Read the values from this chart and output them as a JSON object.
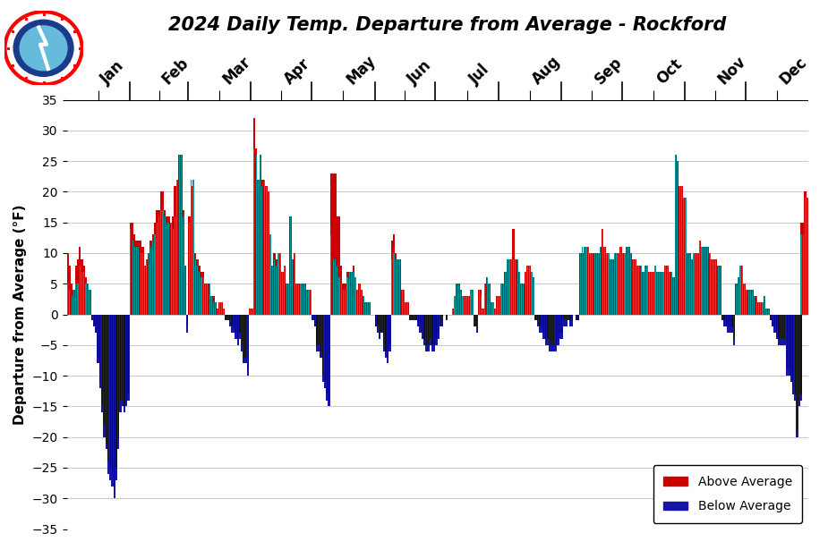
{
  "title": "2024 Daily Temp. Departure from Average - Rockford",
  "ylabel": "Departure from Average (°F)",
  "color_above": "#CC0000",
  "color_below": "#1515AA",
  "color_cyan": "#009999",
  "color_black": "#111111",
  "ylim": [
    -35,
    35
  ],
  "yticks": [
    -35,
    -30,
    -25,
    -20,
    -15,
    -10,
    -5,
    0,
    5,
    10,
    15,
    20,
    25,
    30,
    35
  ],
  "months": [
    "Jan",
    "Feb",
    "Mar",
    "Apr",
    "May",
    "Jun",
    "Jul",
    "Aug",
    "Sep",
    "Oct",
    "Nov",
    "Dec"
  ],
  "month_days": [
    31,
    29,
    31,
    30,
    31,
    30,
    31,
    31,
    30,
    31,
    30,
    31
  ],
  "departures_red": [
    10,
    8,
    5,
    4,
    8,
    9,
    11,
    9,
    8,
    6,
    5,
    4,
    0,
    0,
    0,
    0,
    0,
    0,
    0,
    0,
    0,
    0,
    0,
    0,
    0,
    0,
    0,
    0,
    0,
    0,
    0,
    15,
    15,
    13,
    12,
    12,
    12,
    11,
    8,
    9,
    10,
    12,
    13,
    15,
    17,
    17,
    20,
    20,
    17,
    16,
    16,
    15,
    16,
    21,
    22,
    26,
    26,
    17,
    8,
    0,
    16,
    21,
    21,
    10,
    9,
    8,
    7,
    7,
    5,
    5,
    5,
    3,
    3,
    2,
    1,
    2,
    2,
    1,
    0,
    0,
    0,
    0,
    0,
    0,
    0,
    0,
    0,
    0,
    0,
    0,
    1,
    1,
    32,
    27,
    22,
    26,
    22,
    22,
    21,
    20,
    13,
    8,
    10,
    9,
    10,
    10,
    7,
    8,
    5,
    5,
    16,
    9,
    10,
    5,
    5,
    5,
    5,
    5,
    4,
    4,
    4,
    0,
    0,
    0,
    0,
    0,
    0,
    0,
    0,
    0,
    23,
    23,
    23,
    16,
    16,
    8,
    5,
    5,
    7,
    7,
    7,
    8,
    6,
    4,
    5,
    4,
    3,
    2,
    2,
    2,
    0,
    0,
    0,
    0,
    0,
    0,
    0,
    0,
    0,
    0,
    12,
    13,
    10,
    9,
    9,
    4,
    4,
    2,
    2,
    0,
    0,
    0,
    0,
    0,
    0,
    0,
    0,
    0,
    0,
    0,
    0,
    0,
    0,
    0,
    0,
    0,
    0,
    0,
    0,
    0,
    1,
    3,
    5,
    5,
    4,
    3,
    3,
    3,
    3,
    4,
    4,
    0,
    0,
    4,
    4,
    1,
    5,
    6,
    5,
    2,
    2,
    1,
    3,
    3,
    5,
    5,
    7,
    9,
    9,
    9,
    14,
    9,
    9,
    7,
    5,
    5,
    7,
    8,
    8,
    7,
    6,
    0,
    0,
    0,
    0,
    0,
    0,
    0,
    0,
    0,
    0,
    0,
    0,
    0,
    0,
    0,
    0,
    0,
    0,
    0,
    0,
    0,
    0,
    10,
    10,
    11,
    11,
    11,
    10,
    10,
    10,
    10,
    10,
    11,
    14,
    11,
    10,
    10,
    9,
    9,
    10,
    10,
    10,
    11,
    10,
    10,
    11,
    11,
    10,
    9,
    9,
    8,
    8,
    8,
    7,
    8,
    8,
    7,
    7,
    7,
    8,
    7,
    7,
    7,
    7,
    8,
    8,
    7,
    7,
    6,
    26,
    25,
    21,
    21,
    19,
    19,
    10,
    10,
    9,
    10,
    10,
    10,
    12,
    11,
    11,
    11,
    11,
    10,
    9,
    9,
    9,
    8,
    8,
    0,
    0,
    0,
    0,
    0,
    0,
    0,
    5,
    6,
    8,
    8,
    5,
    4,
    4,
    4,
    4,
    3,
    3,
    2,
    2,
    2,
    3,
    1,
    1,
    0,
    0,
    0,
    0,
    0,
    0,
    0,
    0,
    0,
    0,
    0,
    0,
    0,
    0,
    0,
    15,
    15,
    20,
    19,
    10,
    9,
    10,
    9,
    10,
    10,
    13,
    12,
    13,
    12,
    9,
    5,
    5,
    4,
    4,
    4,
    10,
    13,
    13,
    12,
    12,
    12,
    10,
    10,
    9
  ],
  "departures_blue": [
    0,
    0,
    0,
    0,
    0,
    0,
    0,
    0,
    0,
    0,
    0,
    0,
    -1,
    -2,
    -3,
    -8,
    -12,
    -16,
    -20,
    -22,
    -26,
    -27,
    -28,
    -30,
    -27,
    -22,
    -16,
    -15,
    -16,
    -15,
    -14,
    0,
    0,
    0,
    0,
    0,
    0,
    0,
    0,
    0,
    0,
    0,
    0,
    0,
    0,
    0,
    0,
    0,
    0,
    0,
    0,
    0,
    0,
    0,
    0,
    0,
    0,
    0,
    0,
    -3,
    0,
    0,
    0,
    0,
    0,
    0,
    0,
    0,
    0,
    0,
    0,
    0,
    0,
    0,
    0,
    0,
    0,
    0,
    -1,
    -1,
    -2,
    -3,
    -3,
    -4,
    -5,
    -4,
    -6,
    -8,
    -8,
    -10,
    0,
    0,
    0,
    0,
    0,
    0,
    0,
    0,
    0,
    0,
    0,
    0,
    0,
    0,
    0,
    0,
    0,
    0,
    0,
    0,
    0,
    0,
    0,
    0,
    0,
    0,
    0,
    0,
    0,
    0,
    0,
    -1,
    -2,
    -6,
    -6,
    -7,
    -11,
    -12,
    -14,
    -15,
    0,
    0,
    0,
    0,
    0,
    0,
    0,
    0,
    0,
    0,
    0,
    0,
    0,
    0,
    0,
    0,
    0,
    0,
    0,
    0,
    0,
    0,
    -2,
    -3,
    -4,
    -3,
    -6,
    -7,
    -8,
    -6,
    0,
    0,
    0,
    0,
    0,
    0,
    0,
    0,
    0,
    -1,
    -1,
    -1,
    -1,
    -2,
    -3,
    -4,
    -5,
    -6,
    -6,
    -5,
    -6,
    -6,
    -5,
    -4,
    -2,
    -2,
    0,
    -1,
    0,
    0,
    0,
    0,
    0,
    0,
    0,
    0,
    0,
    0,
    0,
    0,
    0,
    -2,
    -3,
    0,
    0,
    0,
    0,
    0,
    0,
    0,
    0,
    0,
    0,
    0,
    0,
    0,
    0,
    0,
    0,
    0,
    0,
    0,
    0,
    0,
    0,
    0,
    0,
    0,
    0,
    0,
    0,
    -1,
    -2,
    -3,
    -3,
    -4,
    -5,
    -5,
    -6,
    -6,
    -6,
    -6,
    -5,
    -4,
    -4,
    -2,
    -2,
    -1,
    -2,
    -2,
    0,
    -1,
    -1,
    0,
    0,
    0,
    0,
    0,
    0,
    0,
    0,
    0,
    0,
    0,
    0,
    0,
    0,
    0,
    0,
    0,
    0,
    0,
    0,
    0,
    0,
    0,
    0,
    0,
    0,
    0,
    0,
    0,
    0,
    0,
    0,
    0,
    0,
    0,
    0,
    0,
    0,
    0,
    0,
    0,
    0,
    0,
    0,
    0,
    0,
    0,
    0,
    0,
    0,
    0,
    0,
    0,
    0,
    0,
    0,
    0,
    0,
    0,
    0,
    0,
    0,
    0,
    0,
    0,
    0,
    0,
    0,
    0,
    0,
    -1,
    -2,
    -2,
    -3,
    -3,
    -3,
    -5,
    0,
    0,
    0,
    0,
    0,
    0,
    0,
    0,
    0,
    0,
    0,
    0,
    0,
    0,
    0,
    0,
    0,
    -1,
    -2,
    -3,
    -4,
    -5,
    -5,
    -5,
    -5,
    -10,
    -10,
    -11,
    -13,
    -14,
    -20,
    -15,
    -14,
    0,
    0,
    0,
    0,
    0,
    0,
    0,
    0,
    0,
    0,
    0,
    0,
    0,
    0,
    0,
    0,
    0,
    0,
    0,
    0,
    0,
    0,
    0,
    0,
    0,
    0,
    0,
    0
  ],
  "departures_cyan": [
    5,
    4,
    3,
    4,
    5,
    5,
    8,
    7,
    7,
    5,
    5,
    4,
    0,
    0,
    0,
    0,
    0,
    0,
    0,
    0,
    0,
    0,
    0,
    0,
    0,
    0,
    0,
    0,
    0,
    0,
    0,
    14,
    12,
    11,
    11,
    11,
    10,
    10,
    8,
    9,
    10,
    11,
    12,
    13,
    15,
    16,
    17,
    17,
    16,
    15,
    15,
    15,
    14,
    16,
    22,
    26,
    26,
    16,
    8,
    0,
    15,
    22,
    22,
    9,
    8,
    7,
    6,
    6,
    5,
    5,
    5,
    3,
    2,
    2,
    1,
    2,
    2,
    1,
    0,
    0,
    0,
    0,
    0,
    0,
    0,
    0,
    0,
    0,
    0,
    0,
    1,
    1,
    27,
    26,
    22,
    26,
    21,
    22,
    21,
    20,
    13,
    8,
    9,
    8,
    10,
    10,
    7,
    8,
    5,
    5,
    16,
    9,
    10,
    5,
    5,
    5,
    5,
    5,
    4,
    4,
    4,
    0,
    0,
    0,
    0,
    0,
    0,
    0,
    0,
    0,
    13,
    9,
    9,
    8,
    6,
    5,
    4,
    4,
    6,
    7,
    7,
    7,
    6,
    4,
    5,
    4,
    3,
    2,
    2,
    2,
    0,
    0,
    0,
    0,
    0,
    0,
    0,
    0,
    0,
    0,
    9,
    10,
    9,
    9,
    9,
    4,
    4,
    2,
    2,
    0,
    0,
    0,
    0,
    0,
    0,
    0,
    0,
    0,
    0,
    0,
    0,
    0,
    0,
    0,
    0,
    0,
    0,
    0,
    0,
    0,
    1,
    3,
    5,
    5,
    4,
    3,
    3,
    3,
    3,
    4,
    4,
    0,
    0,
    4,
    3,
    1,
    5,
    6,
    5,
    2,
    2,
    1,
    3,
    3,
    5,
    5,
    7,
    9,
    9,
    9,
    9,
    9,
    9,
    7,
    5,
    5,
    7,
    8,
    8,
    7,
    6,
    0,
    0,
    0,
    0,
    0,
    0,
    0,
    0,
    0,
    0,
    0,
    0,
    0,
    0,
    0,
    0,
    0,
    0,
    0,
    0,
    0,
    0,
    10,
    11,
    11,
    11,
    11,
    10,
    10,
    10,
    10,
    10,
    11,
    14,
    11,
    10,
    10,
    9,
    9,
    10,
    10,
    10,
    11,
    10,
    10,
    11,
    11,
    10,
    9,
    9,
    8,
    8,
    8,
    7,
    8,
    8,
    7,
    7,
    7,
    8,
    7,
    7,
    7,
    7,
    8,
    8,
    7,
    7,
    6,
    26,
    25,
    21,
    21,
    19,
    19,
    10,
    10,
    9,
    10,
    10,
    10,
    12,
    11,
    11,
    11,
    11,
    10,
    9,
    9,
    9,
    8,
    8,
    0,
    0,
    0,
    0,
    0,
    0,
    0,
    5,
    6,
    8,
    8,
    5,
    4,
    4,
    4,
    4,
    3,
    3,
    2,
    2,
    2,
    3,
    1,
    1,
    0,
    0,
    0,
    0,
    0,
    0,
    0,
    0,
    0,
    0,
    0,
    0,
    0,
    0,
    0,
    13,
    13,
    19,
    19,
    9,
    8,
    10,
    9,
    10,
    10,
    13,
    12,
    12,
    12,
    9,
    5,
    5,
    4,
    4,
    4,
    10,
    13,
    13,
    12,
    12,
    12,
    10,
    10,
    9
  ],
  "departures_black": [
    0,
    0,
    0,
    0,
    0,
    0,
    0,
    0,
    0,
    0,
    0,
    0,
    -1,
    -2,
    -3,
    -7,
    -11,
    -15,
    -18,
    -21,
    -24,
    -25,
    -26,
    -28,
    -25,
    -20,
    -14,
    -14,
    -15,
    -14,
    -13,
    0,
    0,
    0,
    0,
    0,
    0,
    0,
    0,
    0,
    0,
    0,
    0,
    0,
    0,
    0,
    0,
    0,
    0,
    0,
    0,
    0,
    0,
    0,
    0,
    0,
    0,
    0,
    0,
    -2,
    0,
    0,
    0,
    0,
    0,
    0,
    0,
    0,
    0,
    0,
    0,
    0,
    0,
    0,
    0,
    0,
    0,
    0,
    -1,
    -1,
    -1,
    -2,
    -2,
    -3,
    -4,
    -3,
    -5,
    -7,
    -7,
    -9,
    0,
    0,
    0,
    0,
    0,
    0,
    0,
    0,
    0,
    0,
    0,
    0,
    0,
    0,
    0,
    0,
    0,
    0,
    0,
    0,
    0,
    0,
    0,
    0,
    0,
    0,
    0,
    0,
    0,
    0,
    0,
    -1,
    -2,
    -5,
    -5,
    -6,
    -10,
    -11,
    -13,
    -14,
    0,
    0,
    0,
    0,
    0,
    0,
    0,
    0,
    0,
    0,
    0,
    0,
    0,
    0,
    0,
    0,
    0,
    0,
    0,
    0,
    0,
    0,
    -2,
    -2,
    -3,
    -3,
    -5,
    -6,
    -7,
    -5,
    0,
    0,
    0,
    0,
    0,
    0,
    0,
    0,
    0,
    -1,
    -1,
    -1,
    -1,
    -2,
    -2,
    -3,
    -4,
    -5,
    -5,
    -4,
    -5,
    -5,
    -4,
    -3,
    -2,
    -1,
    0,
    -1,
    0,
    0,
    0,
    0,
    0,
    0,
    0,
    0,
    0,
    0,
    0,
    0,
    0,
    -2,
    -2,
    0,
    0,
    0,
    0,
    0,
    0,
    0,
    0,
    0,
    0,
    0,
    0,
    0,
    0,
    0,
    0,
    0,
    0,
    0,
    0,
    0,
    0,
    0,
    0,
    0,
    0,
    0,
    0,
    -1,
    -1,
    -2,
    -2,
    -3,
    -4,
    -4,
    -5,
    -5,
    -5,
    -5,
    -4,
    -3,
    -3,
    -1,
    -1,
    -1,
    -1,
    -1,
    0,
    -1,
    -1,
    0,
    0,
    0,
    0,
    0,
    0,
    0,
    0,
    0,
    0,
    0,
    0,
    0,
    0,
    0,
    0,
    0,
    0,
    0,
    0,
    0,
    0,
    0,
    0,
    0,
    0,
    0,
    0,
    0,
    0,
    0,
    0,
    0,
    0,
    0,
    0,
    0,
    0,
    0,
    0,
    0,
    0,
    0,
    0,
    0,
    0,
    0,
    0,
    0,
    0,
    0,
    0,
    0,
    0,
    0,
    0,
    0,
    0,
    0,
    0,
    0,
    0,
    0,
    0,
    0,
    0,
    0,
    0,
    0,
    0,
    -1,
    -1,
    -2,
    -2,
    -2,
    -2,
    -4,
    0,
    0,
    0,
    0,
    0,
    0,
    0,
    0,
    0,
    0,
    0,
    0,
    0,
    0,
    0,
    0,
    0,
    -1,
    -2,
    -2,
    -3,
    -4,
    -4,
    -4,
    -4,
    -9,
    -9,
    -10,
    -12,
    -13,
    -19,
    -14,
    -13,
    0,
    0,
    0,
    0,
    0,
    0,
    0,
    0,
    0,
    0,
    0,
    0,
    0,
    0,
    0,
    0,
    0,
    0,
    0,
    0,
    0,
    0,
    0,
    0,
    0,
    0,
    0,
    0
  ]
}
